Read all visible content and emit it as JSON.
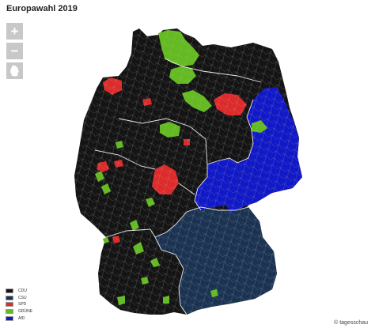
{
  "map": {
    "title": "Europawahl 2019",
    "credit": "© tagesschau"
  },
  "controls": {
    "zoom_in_label": "+",
    "zoom_out_label": "−",
    "reset_icon": "germany-outline-icon"
  },
  "colors": {
    "background": "#ffffff",
    "boundary": "#b5b5b5",
    "state_boundary": "#ffffff",
    "button": "#c8c8c8"
  },
  "legend": {
    "items": [
      {
        "label": "CDU",
        "color": "#141414"
      },
      {
        "label": "CSU",
        "color": "#1b3352"
      },
      {
        "label": "SPD",
        "color": "#dd2a2a"
      },
      {
        "label": "GRÜNE",
        "color": "#63bb1f"
      },
      {
        "label": "AfD",
        "color": "#1018c7"
      }
    ]
  }
}
